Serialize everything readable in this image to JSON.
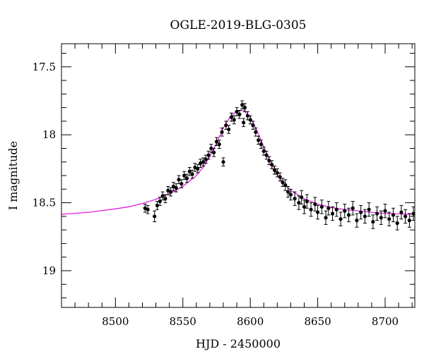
{
  "chart_data": {
    "type": "scatter",
    "title": "OGLE-2019-BLG-0305",
    "xlabel": "HJD - 2450000",
    "ylabel": "I magnitude",
    "xlim": [
      8460,
      8722
    ],
    "ylim": [
      19.27,
      17.33
    ],
    "y_inverted": true,
    "grid": false,
    "x_major_ticks": [
      8500,
      8550,
      8600,
      8650,
      8700
    ],
    "x_tick_labels": [
      "8500",
      "8550",
      "8600",
      "8650",
      "8700"
    ],
    "y_major_ticks": [
      17.5,
      18,
      18.5,
      19
    ],
    "y_tick_labels": [
      "17.5",
      "18",
      "18.5",
      "19"
    ],
    "series": [
      {
        "kind": "model",
        "color": "#e020e0",
        "x": [
          8460,
          8480,
          8500,
          8510,
          8520,
          8530,
          8540,
          8550,
          8560,
          8565,
          8570,
          8575,
          8580,
          8585,
          8590,
          8595,
          8600,
          8605,
          8610,
          8615,
          8620,
          8625,
          8630,
          8640,
          8650,
          8660,
          8670,
          8680,
          8690,
          8700,
          8710,
          8722
        ],
        "y": [
          18.585,
          18.57,
          18.545,
          18.53,
          18.505,
          18.475,
          18.435,
          18.38,
          18.3,
          18.24,
          18.16,
          18.06,
          17.95,
          17.87,
          17.825,
          17.82,
          17.87,
          17.97,
          18.09,
          18.2,
          18.29,
          18.36,
          18.41,
          18.47,
          18.51,
          18.535,
          18.55,
          18.56,
          18.57,
          18.578,
          18.582,
          18.585
        ]
      },
      {
        "kind": "observations",
        "color": "#000000",
        "x": [
          8522,
          8524,
          8529,
          8531,
          8533,
          8535,
          8537,
          8539,
          8541,
          8543,
          8545,
          8547,
          8549,
          8551,
          8553,
          8555,
          8557,
          8559,
          8561,
          8563,
          8565,
          8567,
          8569,
          8571,
          8573,
          8575,
          8577,
          8579,
          8580,
          8582,
          8584,
          8586,
          8588,
          8590,
          8592,
          8594,
          8595,
          8596,
          8598,
          8600,
          8602,
          8604,
          8606,
          8608,
          8610,
          8612,
          8614,
          8616,
          8618,
          8620,
          8622,
          8624,
          8626,
          8628,
          8630,
          8633,
          8636,
          8638,
          8640,
          8642,
          8645,
          8648,
          8650,
          8653,
          8656,
          8658,
          8661,
          8664,
          8667,
          8670,
          8673,
          8676,
          8679,
          8682,
          8685,
          8688,
          8691,
          8694,
          8697,
          8700,
          8703,
          8706,
          8709,
          8712,
          8715,
          8718,
          8721
        ],
        "y": [
          18.54,
          18.55,
          18.6,
          18.52,
          18.49,
          18.45,
          18.47,
          18.41,
          18.42,
          18.38,
          18.39,
          18.33,
          18.36,
          18.3,
          18.32,
          18.27,
          18.29,
          18.24,
          18.25,
          18.21,
          18.2,
          18.18,
          18.15,
          18.1,
          18.13,
          18.05,
          18.07,
          17.98,
          18.2,
          17.93,
          17.96,
          17.87,
          17.89,
          17.83,
          17.85,
          17.78,
          17.91,
          17.8,
          17.86,
          17.89,
          17.93,
          17.98,
          18.04,
          18.07,
          18.12,
          18.15,
          18.19,
          18.22,
          18.26,
          18.28,
          18.31,
          18.35,
          18.37,
          18.42,
          18.44,
          18.47,
          18.5,
          18.46,
          18.53,
          18.49,
          18.55,
          18.51,
          18.57,
          18.53,
          18.61,
          18.54,
          18.58,
          18.55,
          18.62,
          18.56,
          18.59,
          18.54,
          18.63,
          18.57,
          18.6,
          18.55,
          18.64,
          18.58,
          18.61,
          18.56,
          18.62,
          18.59,
          18.65,
          18.57,
          18.6,
          18.63,
          18.58
        ],
        "err": [
          0.03,
          0.03,
          0.04,
          0.03,
          0.03,
          0.03,
          0.03,
          0.03,
          0.03,
          0.03,
          0.03,
          0.03,
          0.03,
          0.03,
          0.03,
          0.03,
          0.03,
          0.03,
          0.03,
          0.03,
          0.03,
          0.03,
          0.03,
          0.03,
          0.03,
          0.03,
          0.03,
          0.03,
          0.03,
          0.03,
          0.03,
          0.03,
          0.03,
          0.03,
          0.03,
          0.03,
          0.03,
          0.03,
          0.03,
          0.03,
          0.03,
          0.03,
          0.03,
          0.03,
          0.03,
          0.03,
          0.03,
          0.03,
          0.03,
          0.03,
          0.03,
          0.03,
          0.04,
          0.04,
          0.04,
          0.05,
          0.05,
          0.05,
          0.05,
          0.05,
          0.05,
          0.05,
          0.05,
          0.05,
          0.05,
          0.05,
          0.05,
          0.05,
          0.05,
          0.05,
          0.05,
          0.05,
          0.05,
          0.05,
          0.05,
          0.05,
          0.05,
          0.05,
          0.05,
          0.05,
          0.05,
          0.05,
          0.05,
          0.05,
          0.05,
          0.05,
          0.05
        ]
      }
    ]
  }
}
